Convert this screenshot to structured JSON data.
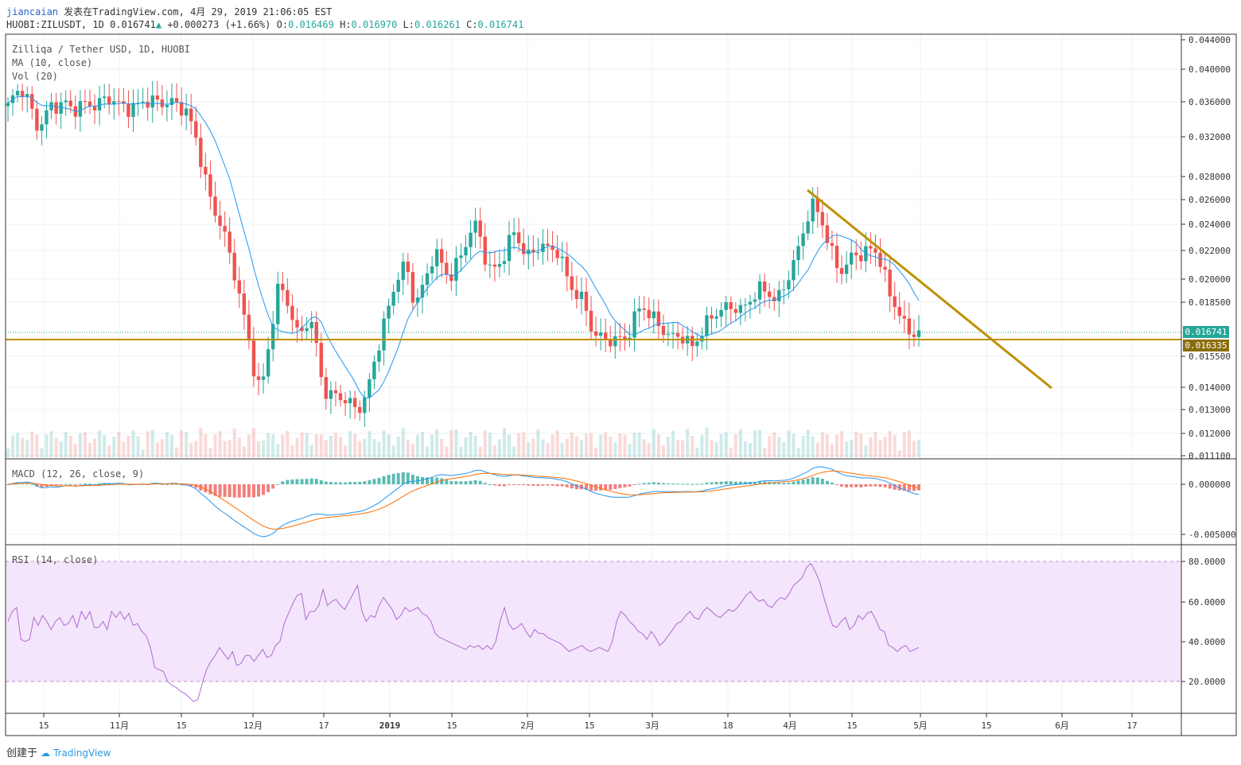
{
  "header": {
    "user": "jiancaian",
    "published_text": "发表在TradingView.com, 4月 29, 2019 21:06:05 EST",
    "symbol": "HUOBI:ZILUSDT, 1D",
    "last": "0.016741",
    "change": "+0.000273 (+1.66%)",
    "open_label": "O:",
    "open": "0.016469",
    "high_label": "H:",
    "high": "0.016970",
    "low_label": "L:",
    "low": "0.016261",
    "close_label": "C:",
    "close": "0.016741"
  },
  "legend": {
    "title": "Zilliqa / Tether USD, 1D, HUOBI",
    "ma": "MA (10, close)",
    "vol": "Vol (20)",
    "macd": "MACD (12, 26, close, 9)",
    "rsi": "RSI (14, close)"
  },
  "footer": {
    "created_with": "创建于",
    "brand": "TradingView"
  },
  "price_tags": {
    "last": "0.016741",
    "line": "0.016335"
  },
  "colors": {
    "up": "#26a69a",
    "down": "#ef5350",
    "ma": "#2196f3",
    "signal": "#ff6d00",
    "trendline": "#bf9000",
    "rsi_line": "#9c27b0",
    "rsi_band": "#f3e5fb"
  },
  "chart_data": [
    {
      "type": "candlestick",
      "title": "Zilliqa / Tether USD, 1D, HUOBI",
      "y_ticks": [
        "0.044000",
        "0.040000",
        "0.036000",
        "0.032000",
        "0.028000",
        "0.026000",
        "0.024000",
        "0.022000",
        "0.020000",
        "0.018500",
        "0.015500",
        "0.014000",
        "0.013000",
        "0.012000",
        "0.011100"
      ],
      "x_ticks": [
        "15",
        "11月",
        "15",
        "12月",
        "17",
        "2019",
        "15",
        "2月",
        "15",
        "3月",
        "18",
        "4月",
        "15",
        "5月",
        "15",
        "6月",
        "17"
      ],
      "close_path": [
        0.0355,
        0.037,
        0.0375,
        0.036,
        0.033,
        0.034,
        0.0355,
        0.0355,
        0.036,
        0.035,
        0.0355,
        0.0358,
        0.0355,
        0.036,
        0.0365,
        0.036,
        0.0355,
        0.0352,
        0.0355,
        0.036,
        0.0362,
        0.036,
        0.0358,
        0.036,
        0.0355,
        0.035,
        0.033,
        0.03,
        0.027,
        0.025,
        0.024,
        0.022,
        0.02,
        0.018,
        0.016,
        0.014,
        0.0145,
        0.017,
        0.0195,
        0.019,
        0.0175,
        0.0165,
        0.0175,
        0.017,
        0.0145,
        0.0135,
        0.0137,
        0.0135,
        0.0133,
        0.013,
        0.0133,
        0.0145,
        0.016,
        0.0175,
        0.019,
        0.0205,
        0.021,
        0.0185,
        0.019,
        0.0205,
        0.022,
        0.021,
        0.02,
        0.021,
        0.022,
        0.0235,
        0.024,
        0.0215,
        0.0205,
        0.021,
        0.022,
        0.0235,
        0.0225,
        0.0215,
        0.022,
        0.0225,
        0.022,
        0.0222,
        0.021,
        0.0195,
        0.019,
        0.0185,
        0.017,
        0.0165,
        0.0165,
        0.0163,
        0.0165,
        0.0165,
        0.0175,
        0.0185,
        0.0178,
        0.0175,
        0.017,
        0.0165,
        0.0167,
        0.0165,
        0.016,
        0.0165,
        0.0172,
        0.0178,
        0.018,
        0.0182,
        0.0183,
        0.018,
        0.0185,
        0.019,
        0.0195,
        0.019,
        0.0185,
        0.0195,
        0.0205,
        0.022,
        0.024,
        0.0255,
        0.025,
        0.023,
        0.0215,
        0.0205,
        0.021,
        0.022,
        0.0215,
        0.0222,
        0.022,
        0.0205,
        0.019,
        0.018,
        0.0172,
        0.0168,
        0.0167
      ],
      "ma_label": "MA (10, close)",
      "horizontal_line": 0.016335,
      "last_price": 0.016741,
      "trendline": {
        "from": {
          "date": "4月 10, 2019",
          "price": 0.0266
        },
        "to": {
          "date": "5月 25, 2019",
          "price": 0.014
        }
      }
    },
    {
      "type": "histogram",
      "title": "MACD (12, 26, close, 9)",
      "y_ticks": [
        "0.000000",
        "-0.005000"
      ]
    },
    {
      "type": "line",
      "title": "RSI (14, close)",
      "y_ticks": [
        "80.0000",
        "60.0000",
        "40.0000",
        "20.0000"
      ],
      "bands": [
        80,
        20
      ],
      "values": [
        50,
        55,
        57,
        41,
        40,
        41,
        52,
        48,
        53,
        50,
        46,
        50,
        52,
        48,
        49,
        53,
        47,
        55,
        51,
        55,
        47,
        47,
        50,
        46,
        55,
        52,
        55,
        51,
        54,
        48,
        49,
        45,
        43,
        37,
        27,
        26,
        25,
        20,
        18,
        17,
        15,
        14,
        12,
        10,
        11,
        19,
        26,
        30,
        33,
        37,
        34,
        31,
        35,
        28,
        29,
        33,
        33,
        30,
        33,
        36,
        32,
        33,
        38,
        40,
        49,
        54,
        59,
        63,
        64,
        51,
        55,
        55,
        58,
        66,
        58,
        60,
        61,
        58,
        56,
        60,
        64,
        68,
        55,
        50,
        53,
        52,
        58,
        62,
        59,
        56,
        51,
        53,
        57,
        55,
        56,
        57,
        54,
        53,
        50,
        44,
        42,
        41,
        40,
        39,
        38,
        37,
        36,
        38,
        37,
        38,
        36,
        38,
        36,
        40,
        50,
        57,
        49,
        46,
        47,
        49,
        45,
        42,
        46,
        44,
        44,
        42,
        41,
        40,
        39,
        37,
        35,
        36,
        37,
        38,
        36,
        35,
        36,
        37,
        36,
        35,
        40,
        50,
        55,
        53,
        50,
        48,
        45,
        44,
        41,
        45,
        42,
        38,
        40,
        43,
        46,
        49,
        50,
        53,
        55,
        52,
        51,
        55,
        57,
        55,
        53,
        52,
        54,
        56,
        55,
        57,
        60,
        63,
        65,
        62,
        60,
        61,
        58,
        57,
        60,
        62,
        61,
        64,
        68,
        70,
        72,
        77,
        79,
        75,
        70,
        62,
        55,
        48,
        47,
        50,
        52,
        46,
        48,
        53,
        51,
        54,
        55,
        51,
        46,
        45,
        38,
        37,
        35,
        37,
        38,
        35,
        36,
        37
      ]
    }
  ]
}
